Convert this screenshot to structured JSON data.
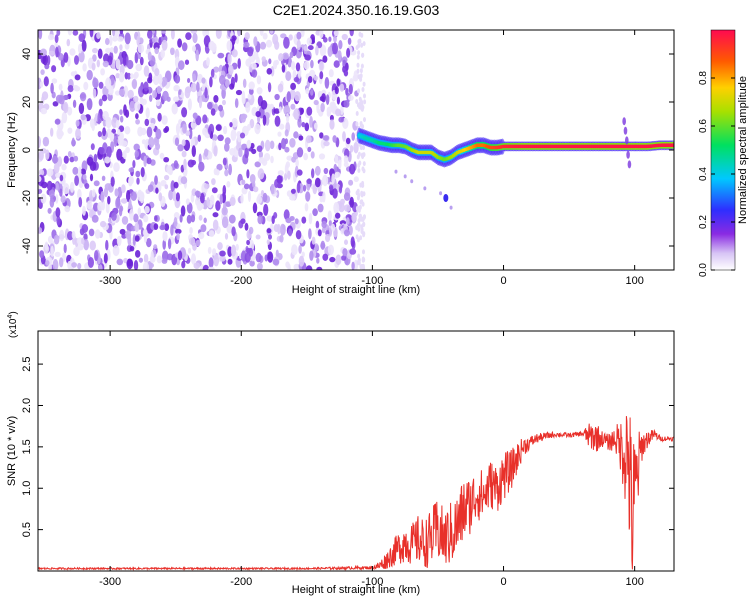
{
  "chart_data": [
    {
      "type": "heatmap",
      "title": "C2E1.2024.350.16.19.G03",
      "xlabel": "Height of straight line (km)",
      "ylabel": "Frequency (Hz)",
      "xlim": [
        -355,
        130
      ],
      "ylim": [
        -50,
        50
      ],
      "x_ticks": [
        -300,
        -200,
        -100,
        0,
        100
      ],
      "y_ticks": [
        -40,
        -20,
        0,
        20,
        40
      ],
      "noise_region_x": [
        -355,
        -112
      ],
      "ridge": {
        "x": [
          -110,
          -105,
          -100,
          -95,
          -90,
          -85,
          -80,
          -75,
          -70,
          -65,
          -60,
          -55,
          -50,
          -45,
          -40,
          -35,
          -30,
          -25,
          -20,
          -15,
          -10,
          -5,
          0,
          10,
          20,
          30,
          40,
          50,
          60,
          70,
          80,
          90,
          100,
          110,
          120,
          130
        ],
        "freq": [
          6,
          5,
          4,
          3,
          2.5,
          2,
          2,
          1.5,
          0,
          -1,
          -1,
          -1,
          -3,
          -4,
          -3,
          -1,
          0,
          1,
          2,
          2,
          1,
          1,
          1.5,
          1.5,
          1.5,
          1.5,
          1.5,
          1.5,
          1.5,
          1.5,
          1.5,
          1.5,
          1.5,
          1.5,
          2,
          2
        ],
        "amplitude": [
          0.4,
          0.45,
          0.45,
          0.5,
          0.5,
          0.55,
          0.6,
          0.6,
          0.65,
          0.7,
          0.7,
          0.7,
          0.65,
          0.6,
          0.65,
          0.7,
          0.75,
          0.8,
          0.85,
          0.85,
          0.9,
          0.92,
          0.95,
          0.97,
          0.98,
          0.98,
          0.98,
          0.98,
          0.98,
          0.98,
          0.98,
          0.98,
          0.98,
          0.98,
          0.98,
          0.98
        ]
      },
      "colorbar": {
        "label": "Normalized spectral amplitude",
        "range": [
          0,
          1
        ],
        "ticks": [
          "0.0",
          "0.2",
          "0.4",
          "0.6",
          "0.8"
        ]
      }
    },
    {
      "type": "line",
      "title": "",
      "xlabel": "Height of straight line (km)",
      "ylabel": "SNR (10 * v/v)",
      "multiplier_label": "(x10",
      "multiplier_exp": "4",
      "xlim": [
        -355,
        130
      ],
      "ylim": [
        0,
        2.9
      ],
      "x_ticks": [
        -300,
        -200,
        -100,
        0,
        100
      ],
      "y_ticks": [
        "0.5",
        "1.0",
        "1.5",
        "2.0",
        "2.5"
      ],
      "color": "#e8302a",
      "series": [
        {
          "x": [
            -355,
            -300,
            -250,
            -200,
            -150,
            -100,
            -95,
            -90,
            -85,
            -80,
            -75,
            -70,
            -65,
            -60,
            -55,
            -50,
            -45,
            -40,
            -35,
            -30,
            -25,
            -20,
            -15,
            -10,
            -5,
            0,
            5,
            10,
            15,
            20,
            25,
            30,
            35,
            40,
            50,
            60,
            65,
            70,
            75,
            80,
            85,
            90,
            95,
            98,
            100,
            105,
            110,
            115,
            120,
            130
          ],
          "values": [
            0.03,
            0.03,
            0.03,
            0.03,
            0.03,
            0.04,
            0.06,
            0.12,
            0.2,
            0.28,
            0.35,
            0.32,
            0.38,
            0.33,
            0.4,
            0.5,
            0.38,
            0.45,
            0.55,
            0.75,
            0.8,
            0.95,
            0.9,
            1.05,
            1.0,
            1.15,
            1.2,
            1.35,
            1.5,
            1.55,
            1.6,
            1.62,
            1.64,
            1.65,
            1.64,
            1.66,
            1.63,
            1.62,
            1.6,
            1.55,
            1.6,
            1.5,
            1.4,
            0.6,
            0.9,
            1.5,
            1.6,
            1.65,
            1.6,
            1.6
          ],
          "noise_amplitude": [
            0.01,
            0.01,
            0.01,
            0.01,
            0.01,
            0.02,
            0.05,
            0.1,
            0.15,
            0.2,
            0.25,
            0.25,
            0.3,
            0.3,
            0.35,
            0.4,
            0.35,
            0.4,
            0.4,
            0.4,
            0.35,
            0.35,
            0.3,
            0.3,
            0.3,
            0.3,
            0.25,
            0.2,
            0.12,
            0.08,
            0.06,
            0.05,
            0.04,
            0.03,
            0.03,
            0.03,
            0.15,
            0.2,
            0.1,
            0.1,
            0.15,
            0.35,
            0.9,
            1.0,
            0.8,
            0.2,
            0.1,
            0.06,
            0.03,
            0.03
          ]
        }
      ]
    }
  ]
}
